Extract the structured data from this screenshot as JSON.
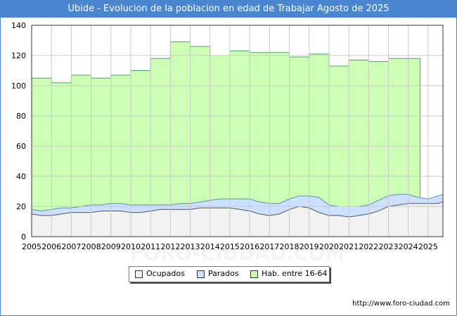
{
  "title": "Ubide - Evolucion de la poblacion en edad de Trabajar Agosto de 2025",
  "source": "http://www.foro-ciudad.com",
  "watermark": "FORO-CIUDAD.COM",
  "colors": {
    "hab_fill": "#ccffb3",
    "hab_line": "#4fa06a",
    "parados_fill": "#cce0ff",
    "parados_line": "#5a8ccc",
    "ocupados_fill": "#f2f2f2",
    "ocupados_line": "#555555",
    "title_bg": "#4a86d0"
  },
  "legend": [
    {
      "key": "ocupados",
      "label": "Ocupados",
      "color": "#f0f0f0"
    },
    {
      "key": "parados",
      "label": "Parados",
      "color": "#cce0ff"
    },
    {
      "key": "hab",
      "label": "Hab. entre 16-64",
      "color": "#ccffb3"
    }
  ],
  "chart_data": {
    "type": "area",
    "xlim": [
      2005,
      2025.75
    ],
    "ylim": [
      0,
      140
    ],
    "y_ticks": [
      0,
      20,
      40,
      60,
      80,
      100,
      120,
      140
    ],
    "x_ticks": [
      2005,
      2006,
      2007,
      2008,
      2009,
      2010,
      2011,
      2012,
      2013,
      2014,
      2015,
      2016,
      2017,
      2018,
      2019,
      2020,
      2021,
      2022,
      2023,
      2024,
      2025
    ],
    "grid": true,
    "legend_position": "bottom",
    "series": [
      {
        "name": "Hab. entre 16-64",
        "key": "hab",
        "step": true,
        "x": [
          2005,
          2006,
          2007,
          2008,
          2009,
          2010,
          2011,
          2012,
          2013,
          2014,
          2015,
          2016,
          2017,
          2018,
          2019,
          2020,
          2021,
          2022,
          2023,
          2024
        ],
        "values": [
          105,
          102,
          107,
          105,
          107,
          110,
          118,
          129,
          126,
          120,
          123,
          122,
          122,
          119,
          121,
          113,
          117,
          116,
          118,
          118
        ]
      },
      {
        "name": "Parados",
        "key": "parados",
        "x": [
          2005,
          2005.5,
          2006,
          2006.5,
          2007,
          2007.5,
          2008,
          2008.5,
          2009,
          2009.5,
          2010,
          2010.5,
          2011,
          2011.5,
          2012,
          2012.5,
          2013,
          2013.5,
          2014,
          2014.5,
          2015,
          2015.5,
          2016,
          2016.5,
          2017,
          2017.5,
          2018,
          2018.5,
          2019,
          2019.5,
          2020,
          2020.5,
          2021,
          2021.5,
          2022,
          2022.5,
          2023,
          2023.5,
          2024,
          2024.5,
          2025,
          2025.5,
          2025.75
        ],
        "values": [
          18,
          17,
          18,
          19,
          19,
          20,
          21,
          21,
          22,
          22,
          21,
          21,
          21,
          21,
          21,
          22,
          22,
          23,
          24,
          25,
          25,
          25,
          25,
          23,
          22,
          22,
          25,
          27,
          27,
          26,
          21,
          20,
          20,
          20,
          21,
          24,
          27,
          28,
          28,
          26,
          25,
          27,
          28
        ]
      },
      {
        "name": "Ocupados",
        "key": "ocupados",
        "x": [
          2005,
          2005.5,
          2006,
          2006.5,
          2007,
          2007.5,
          2008,
          2008.5,
          2009,
          2009.5,
          2010,
          2010.5,
          2011,
          2011.5,
          2012,
          2012.5,
          2013,
          2013.5,
          2014,
          2014.5,
          2015,
          2015.5,
          2016,
          2016.5,
          2017,
          2017.5,
          2018,
          2018.5,
          2019,
          2019.5,
          2020,
          2020.5,
          2021,
          2021.5,
          2022,
          2022.5,
          2023,
          2023.5,
          2024,
          2024.5,
          2025,
          2025.5,
          2025.75
        ],
        "values": [
          15,
          14,
          14,
          15,
          16,
          16,
          16,
          17,
          17,
          17,
          16,
          16,
          17,
          18,
          18,
          18,
          18,
          19,
          19,
          19,
          19,
          18,
          17,
          15,
          14,
          15,
          18,
          20,
          19,
          16,
          14,
          14,
          13,
          14,
          15,
          17,
          20,
          21,
          22,
          22,
          22,
          22,
          23
        ]
      }
    ]
  }
}
